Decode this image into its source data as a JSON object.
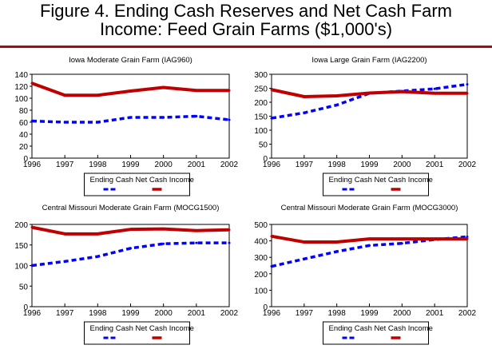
{
  "figure": {
    "title_line1": "Figure 4. Ending Cash Reserves and Net Cash Farm",
    "title_line2": "Income:  Feed Grain Farms ($1,000's)",
    "rule_color": "#a50a14"
  },
  "colors": {
    "ending_cash": "#0000ff",
    "net_cash_income": "#c00000"
  },
  "chart_data": [
    {
      "type": "line",
      "title": "Iowa Moderate Grain Farm (IAG960)",
      "xlabel": "",
      "ylabel": "",
      "x": [
        1996,
        1997,
        1998,
        1999,
        2000,
        2001,
        2002
      ],
      "xticks": [
        "1996",
        "1997",
        "1998",
        "1999",
        "2000",
        "2001",
        "2002"
      ],
      "ylim": [
        0,
        140
      ],
      "yticks": [
        "0",
        "20",
        "40",
        "60",
        "80",
        "100",
        "120",
        "140"
      ],
      "ytick_values": [
        0,
        20,
        40,
        60,
        80,
        100,
        120,
        140
      ],
      "grid": false,
      "legend": "bottom",
      "series": [
        {
          "name": "Ending Cash",
          "style": "dashed",
          "values": [
            62,
            60,
            60,
            68,
            68,
            70,
            64
          ]
        },
        {
          "name": "Net Cash Income",
          "style": "solid",
          "values": [
            125,
            105,
            105,
            112,
            118,
            113,
            113
          ]
        }
      ]
    },
    {
      "type": "line",
      "title": "Iowa Large Grain Farm (IAG2200)",
      "xlabel": "",
      "ylabel": "",
      "x": [
        1996,
        1997,
        1998,
        1999,
        2000,
        2001,
        2002
      ],
      "xticks": [
        "1996",
        "1997",
        "1998",
        "1999",
        "2000",
        "2001",
        "2002"
      ],
      "ylim": [
        0,
        300
      ],
      "yticks": [
        "0",
        "50",
        "100",
        "150",
        "200",
        "250",
        "300"
      ],
      "ytick_values": [
        0,
        50,
        100,
        150,
        200,
        250,
        300
      ],
      "grid": false,
      "legend": "bottom",
      "series": [
        {
          "name": "Ending Cash",
          "style": "dashed",
          "values": [
            143,
            162,
            190,
            232,
            240,
            248,
            264
          ]
        },
        {
          "name": "Net Cash Income",
          "style": "solid",
          "values": [
            245,
            220,
            223,
            233,
            238,
            232,
            232
          ]
        }
      ]
    },
    {
      "type": "line",
      "title": "Central Missouri Moderate Grain Farm (MOCG1500)",
      "xlabel": "",
      "ylabel": "",
      "x": [
        1996,
        1997,
        1998,
        1999,
        2000,
        2001,
        2002
      ],
      "xticks": [
        "1996",
        "1997",
        "1998",
        "1999",
        "2000",
        "2001",
        "2002"
      ],
      "ylim": [
        0,
        200
      ],
      "yticks": [
        "0",
        "50",
        "100",
        "150",
        "200"
      ],
      "ytick_values": [
        0,
        50,
        100,
        150,
        200
      ],
      "grid": false,
      "legend": "bottom",
      "series": [
        {
          "name": "Ending Cash",
          "style": "dashed",
          "values": [
            100,
            110,
            122,
            142,
            153,
            155,
            155
          ]
        },
        {
          "name": "Net Cash Income",
          "style": "solid",
          "values": [
            193,
            177,
            177,
            188,
            189,
            185,
            187
          ]
        }
      ]
    },
    {
      "type": "line",
      "title": "Central Missouri Moderate Grain Farm (MOCG3000)",
      "xlabel": "",
      "ylabel": "",
      "x": [
        1996,
        1997,
        1998,
        1999,
        2000,
        2001,
        2002
      ],
      "xticks": [
        "1996",
        "1997",
        "1998",
        "1999",
        "2000",
        "2001",
        "2002"
      ],
      "ylim": [
        0,
        500
      ],
      "yticks": [
        "0",
        "100",
        "200",
        "300",
        "400",
        "500"
      ],
      "ytick_values": [
        0,
        100,
        200,
        300,
        400,
        500
      ],
      "grid": false,
      "legend": "bottom",
      "series": [
        {
          "name": "Ending Cash",
          "style": "dashed",
          "values": [
            245,
            290,
            335,
            372,
            385,
            408,
            425
          ]
        },
        {
          "name": "Net Cash Income",
          "style": "solid",
          "values": [
            428,
            393,
            393,
            412,
            412,
            412,
            412
          ]
        }
      ]
    }
  ]
}
